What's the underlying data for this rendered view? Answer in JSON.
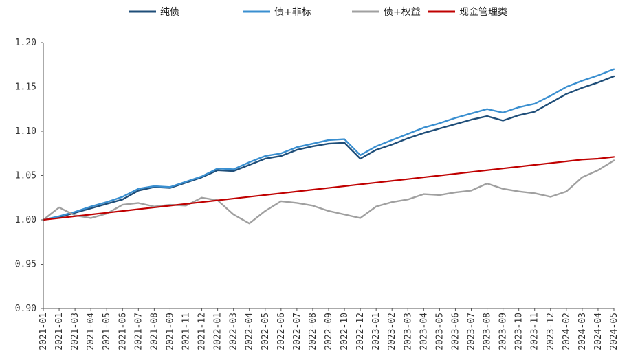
{
  "chart_data": {
    "type": "line",
    "title": "",
    "xlabel": "",
    "ylabel": "",
    "ylim": [
      0.9,
      1.2
    ],
    "yticks": [
      "1.20",
      "1.15",
      "1.10",
      "1.05",
      "1.00",
      "0.95",
      "0.90"
    ],
    "ytick_values": [
      1.2,
      1.15,
      1.1,
      1.05,
      1.0,
      0.95,
      0.9
    ],
    "legend_position": "top",
    "grid": false,
    "x_tick_labels": [
      "2021-01",
      "2021-01",
      "2021-03",
      "2021-04",
      "2021-05",
      "2021-06",
      "2021-07",
      "2021-08",
      "2021-09",
      "2021-11",
      "2021-12",
      "2022-01",
      "2022-03",
      "2022-04",
      "2022-05",
      "2022-06",
      "2022-07",
      "2022-08",
      "2022-09",
      "2022-10",
      "2022-12",
      "2023-01",
      "2023-02",
      "2023-03",
      "2023-04",
      "2023-05",
      "2023-06",
      "2023-07",
      "2023-08",
      "2023-09",
      "2023-10",
      "2023-11",
      "2023-12",
      "2024-02",
      "2024-03",
      "2024-04",
      "2024-05"
    ],
    "x": [
      0,
      1,
      2,
      3,
      4,
      5,
      6,
      7,
      8,
      9,
      10,
      11,
      12,
      13,
      14,
      15,
      16,
      17,
      18,
      19,
      20,
      21,
      22,
      23,
      24,
      25,
      26,
      27,
      28,
      29,
      30,
      31,
      32,
      33,
      34,
      35,
      36
    ],
    "series": [
      {
        "name": "纯债",
        "color": "#1f4e79",
        "values": [
          1.0,
          1.003,
          1.008,
          1.013,
          1.018,
          1.023,
          1.033,
          1.037,
          1.036,
          1.042,
          1.048,
          1.056,
          1.055,
          1.062,
          1.069,
          1.072,
          1.079,
          1.083,
          1.086,
          1.087,
          1.069,
          1.079,
          1.085,
          1.092,
          1.098,
          1.103,
          1.108,
          1.113,
          1.117,
          1.112,
          1.118,
          1.122,
          1.132,
          1.142,
          1.149,
          1.155,
          1.162
        ]
      },
      {
        "name": "债+非标",
        "color": "#3a8fd0",
        "values": [
          1.0,
          1.004,
          1.009,
          1.015,
          1.02,
          1.026,
          1.035,
          1.038,
          1.037,
          1.043,
          1.049,
          1.058,
          1.057,
          1.065,
          1.072,
          1.075,
          1.082,
          1.086,
          1.09,
          1.091,
          1.073,
          1.083,
          1.09,
          1.097,
          1.104,
          1.109,
          1.115,
          1.12,
          1.125,
          1.121,
          1.127,
          1.131,
          1.14,
          1.15,
          1.157,
          1.163,
          1.17
        ]
      },
      {
        "name": "债+权益",
        "color": "#a0a0a0",
        "values": [
          1.0,
          1.014,
          1.005,
          1.002,
          1.007,
          1.017,
          1.019,
          1.015,
          1.017,
          1.016,
          1.025,
          1.022,
          1.006,
          0.996,
          1.01,
          1.021,
          1.019,
          1.016,
          1.01,
          1.006,
          1.002,
          1.015,
          1.02,
          1.023,
          1.029,
          1.028,
          1.031,
          1.033,
          1.041,
          1.035,
          1.032,
          1.03,
          1.026,
          1.032,
          1.048,
          1.056,
          1.067
        ]
      },
      {
        "name": "现金管理类",
        "color": "#c00000",
        "values": [
          1.0,
          1.002,
          1.004,
          1.006,
          1.008,
          1.01,
          1.012,
          1.014,
          1.016,
          1.018,
          1.02,
          1.022,
          1.024,
          1.026,
          1.028,
          1.03,
          1.032,
          1.034,
          1.036,
          1.038,
          1.04,
          1.042,
          1.044,
          1.046,
          1.048,
          1.05,
          1.052,
          1.054,
          1.056,
          1.058,
          1.06,
          1.062,
          1.064,
          1.066,
          1.068,
          1.069,
          1.071
        ]
      }
    ]
  }
}
